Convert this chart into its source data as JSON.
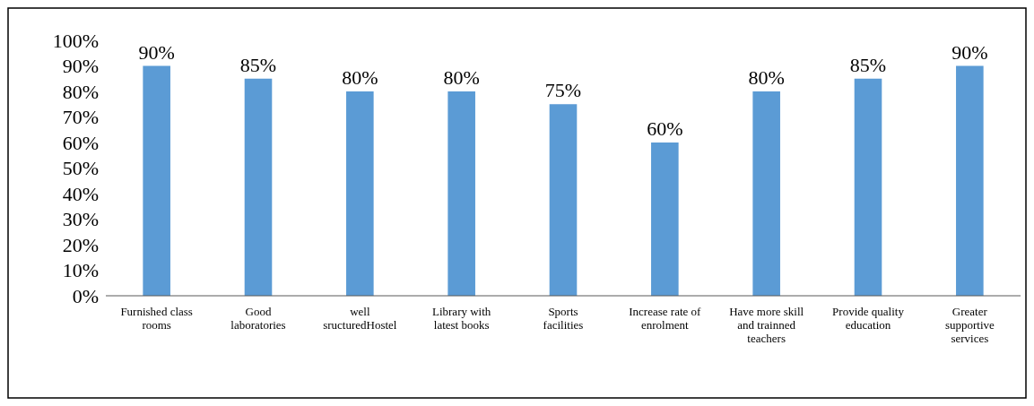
{
  "chart_data": {
    "type": "bar",
    "categories": [
      "Furnished class rooms",
      "Good laboratories",
      "well sructuredHostel",
      "Library with latest books",
      "Sports facilities",
      "Increase rate of enrolment",
      "Have more skill and trainned teachers",
      "Provide quality education",
      "Greater supportive services"
    ],
    "values": [
      90,
      85,
      80,
      80,
      75,
      60,
      80,
      85,
      90
    ],
    "value_labels": [
      "90%",
      "85%",
      "80%",
      "80%",
      "75%",
      "60%",
      "80%",
      "85%",
      "90%"
    ],
    "color": "#5b9bd5",
    "ylim": [
      0,
      100
    ],
    "yticks": [
      {
        "value": 0,
        "label": "0%"
      },
      {
        "value": 10,
        "label": "10%"
      },
      {
        "value": 20,
        "label": "20%"
      },
      {
        "value": 30,
        "label": "30%"
      },
      {
        "value": 40,
        "label": "40%"
      },
      {
        "value": 50,
        "label": "50%"
      },
      {
        "value": 60,
        "label": "60%"
      },
      {
        "value": 70,
        "label": "70%"
      },
      {
        "value": 80,
        "label": "80%"
      },
      {
        "value": 90,
        "label": "90%"
      },
      {
        "value": 100,
        "label": "100%"
      }
    ],
    "grid": false
  }
}
